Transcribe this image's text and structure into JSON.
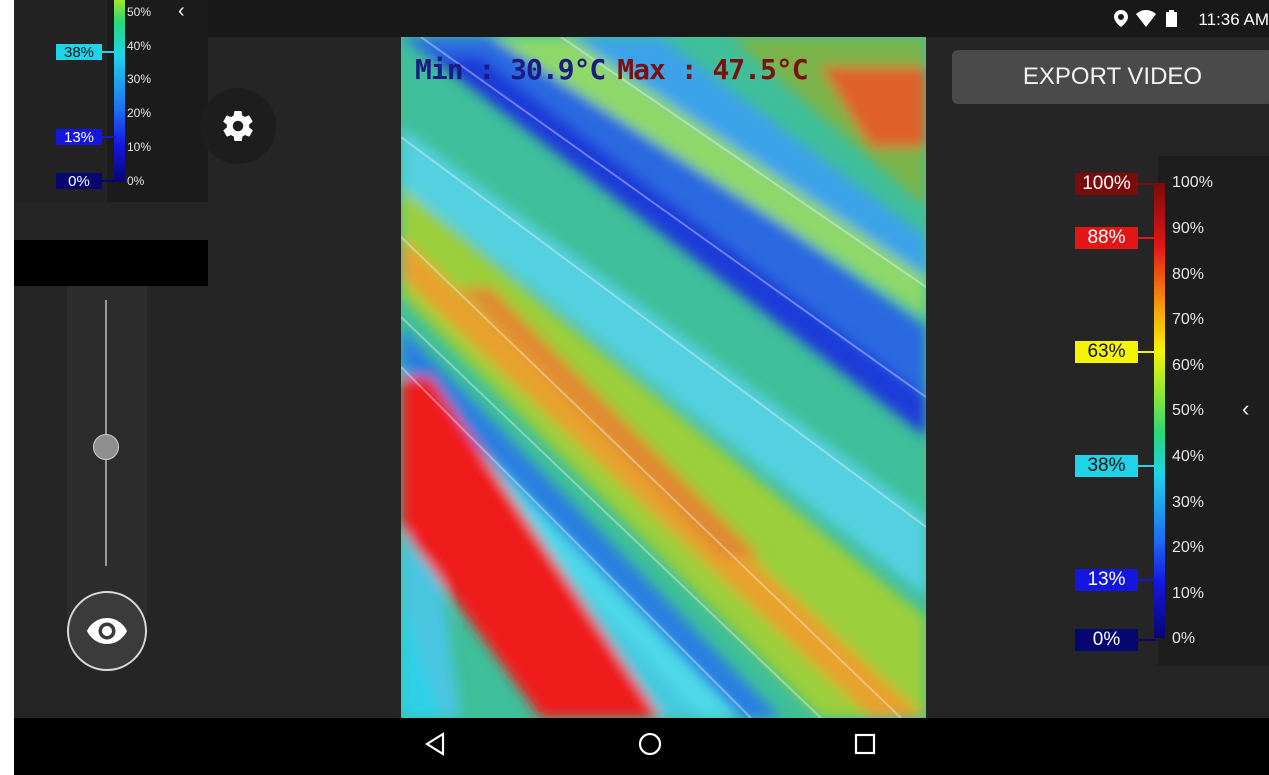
{
  "status_bar": {
    "time": "11:36 AM",
    "icons": [
      "location-icon",
      "wifi-icon",
      "battery-icon"
    ]
  },
  "thermal_view": {
    "min_label": "Min : 30.9°C",
    "max_label": "Max : 47.5°C",
    "min_color": "#1b1b82",
    "max_color": "#7b1010"
  },
  "export_button": {
    "label": "EXPORT VIDEO"
  },
  "right_legend": {
    "markers": [
      {
        "label": "100%",
        "color": "#7a0b0b"
      },
      {
        "label": "88%",
        "color": "#e31616"
      },
      {
        "label": "63%",
        "color": "#f5f507"
      },
      {
        "label": "38%",
        "color": "#1fd4e8"
      },
      {
        "label": "13%",
        "color": "#1515e0"
      },
      {
        "label": "0%",
        "color": "#060671"
      }
    ],
    "ticks": [
      "100%",
      "90%",
      "80%",
      "70%",
      "60%",
      "50%",
      "40%",
      "30%",
      "20%",
      "10%",
      "0%"
    ],
    "collapse_icon": "chevron-left-icon"
  },
  "left_legend": {
    "markers": [
      {
        "label": "38%",
        "color": "#1fd4e8"
      },
      {
        "label": "13%",
        "color": "#1515e0"
      },
      {
        "label": "0%",
        "color": "#060671"
      }
    ],
    "ticks": [
      "50%",
      "40%",
      "30%",
      "20%",
      "10%",
      "0%"
    ],
    "collapse_icon": "chevron-left-icon"
  },
  "controls": {
    "settings_icon": "gear-icon",
    "eye_icon": "eye-icon",
    "slider_level": 0.45
  },
  "nav_bar": {
    "buttons": [
      "back-icon",
      "home-icon",
      "recents-icon"
    ]
  }
}
